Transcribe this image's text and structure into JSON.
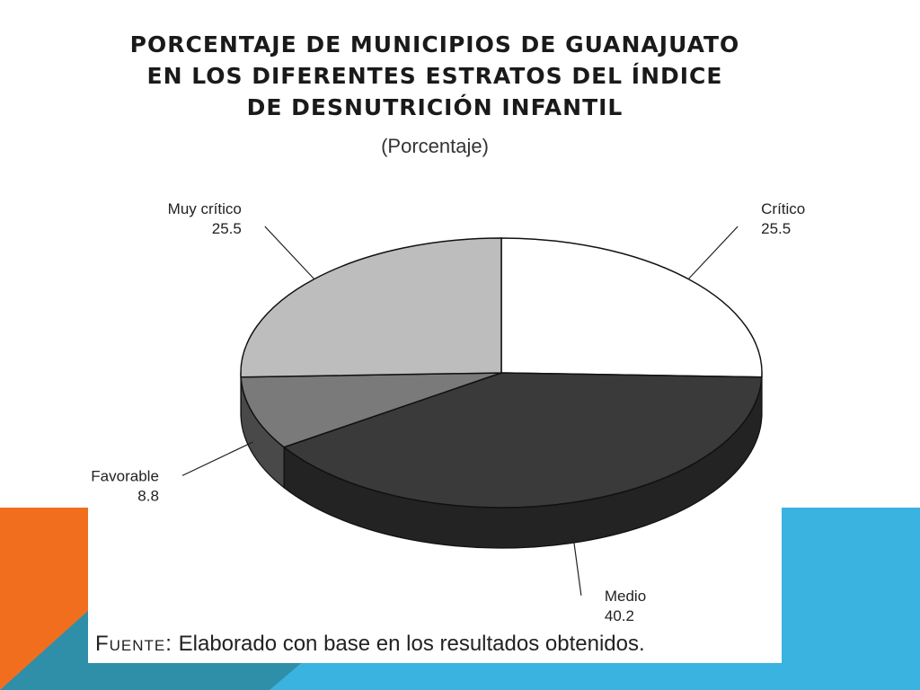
{
  "slide": {
    "colors": {
      "orange": "#f26e1f",
      "teal": "#2f8fa8",
      "blue": "#3bb3e0"
    }
  },
  "chart_data": {
    "type": "pie",
    "title_lines": [
      "PORCENTAJE DE MUNICIPIOS DE GUANAJUATO",
      "EN LOS DIFERENTES ESTRATOS DEL ÍNDICE",
      "DE DESNUTRICIÓN INFANTIL"
    ],
    "subtitle": "(Porcentaje)",
    "style": "3d",
    "slices": [
      {
        "label": "Crítico",
        "value": 25.5,
        "value_text": "25.5",
        "color": "#ffffff"
      },
      {
        "label": "Medio",
        "value": 40.2,
        "value_text": "40.2",
        "color": "#3a3a3a"
      },
      {
        "label": "Favorable",
        "value": 8.8,
        "value_text": "8.8",
        "color": "#7a7a7a"
      },
      {
        "label": "Muy crítico",
        "value": 25.5,
        "value_text": "25.5",
        "color": "#bdbdbd"
      }
    ]
  },
  "source": {
    "key": "Fuente:",
    "text": "Elaborado con base en los resultados obtenidos."
  }
}
